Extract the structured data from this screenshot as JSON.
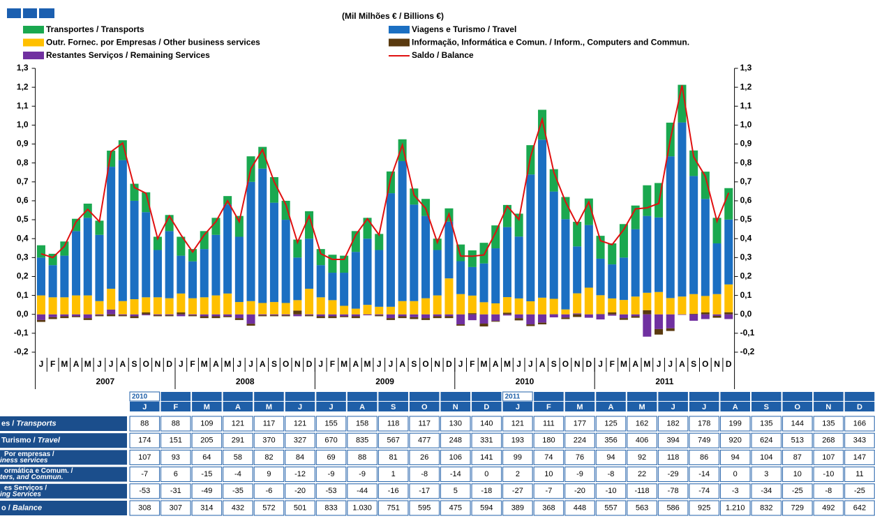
{
  "chart_data": {
    "type": "stacked-bar-line",
    "title": "(Mil Milhões € / Billions €)",
    "categories": [
      "J",
      "F",
      "M",
      "A",
      "M",
      "J",
      "J",
      "A",
      "S",
      "O",
      "N",
      "D",
      "J",
      "F",
      "M",
      "A",
      "M",
      "J",
      "J",
      "A",
      "S",
      "O",
      "N",
      "D",
      "J",
      "F",
      "M",
      "A",
      "M",
      "J",
      "J",
      "A",
      "S",
      "O",
      "N",
      "D",
      "J",
      "F",
      "M",
      "A",
      "M",
      "J",
      "J",
      "A",
      "S",
      "O",
      "N",
      "D",
      "J",
      "F",
      "M",
      "A",
      "M",
      "J",
      "J",
      "A",
      "S",
      "O",
      "N",
      "D"
    ],
    "year_groups": [
      "2007",
      "2008",
      "2009",
      "2010",
      "2011"
    ],
    "ylim": [
      -0.2,
      1.3
    ],
    "yticks": [
      {
        "value": -0.2,
        "label": "-0,2"
      },
      {
        "value": -0.1,
        "label": "-0,1"
      },
      {
        "value": 0,
        "label": "0,0"
      },
      {
        "value": 0.1,
        "label": "0,1"
      },
      {
        "value": 0.2,
        "label": "0,2"
      },
      {
        "value": 0.3,
        "label": "0,3"
      },
      {
        "value": 0.4,
        "label": "0,4"
      },
      {
        "value": 0.5,
        "label": "0,5"
      },
      {
        "value": 0.6,
        "label": "0,6"
      },
      {
        "value": 0.7,
        "label": "0,7"
      },
      {
        "value": 0.8,
        "label": "0,8"
      },
      {
        "value": 0.9,
        "label": "0,9"
      },
      {
        "value": 1,
        "label": "1,0"
      },
      {
        "value": 1.1,
        "label": "1,1"
      },
      {
        "value": 1.2,
        "label": "1,2"
      },
      {
        "value": 1.3,
        "label": "1,3"
      }
    ],
    "series": [
      {
        "name": "Transportes / Transports",
        "color": "#1aa84f",
        "values": [
          0.065,
          0.06,
          0.075,
          0.065,
          0.075,
          0.075,
          0.085,
          0.105,
          0.09,
          0.105,
          0.07,
          0.085,
          0.1,
          0.065,
          0.095,
          0.09,
          0.045,
          0.11,
          0.135,
          0.115,
          0.135,
          0.1,
          0.095,
          0.145,
          0.085,
          0.095,
          0.09,
          0.11,
          0.11,
          0.085,
          0.115,
          0.115,
          0.085,
          0.09,
          0.06,
          0.07,
          0.088,
          0.088,
          0.109,
          0.121,
          0.117,
          0.121,
          0.155,
          0.158,
          0.118,
          0.117,
          0.13,
          0.14,
          0.121,
          0.111,
          0.177,
          0.125,
          0.162,
          0.182,
          0.178,
          0.199,
          0.135,
          0.144,
          0.135,
          0.166
        ]
      },
      {
        "name": "Viagens e Turismo / Travel",
        "color": "#1b6fc2",
        "values": [
          0.2,
          0.17,
          0.22,
          0.34,
          0.41,
          0.35,
          0.645,
          0.745,
          0.52,
          0.45,
          0.25,
          0.355,
          0.2,
          0.195,
          0.255,
          0.32,
          0.47,
          0.345,
          0.63,
          0.71,
          0.525,
          0.44,
          0.225,
          0.265,
          0.17,
          0.145,
          0.175,
          0.3,
          0.35,
          0.3,
          0.6,
          0.74,
          0.51,
          0.435,
          0.24,
          0.3,
          0.174,
          0.151,
          0.205,
          0.291,
          0.37,
          0.327,
          0.67,
          0.835,
          0.567,
          0.477,
          0.248,
          0.331,
          0.193,
          0.18,
          0.224,
          0.356,
          0.406,
          0.394,
          0.749,
          0.92,
          0.624,
          0.513,
          0.268,
          0.343
        ]
      },
      {
        "name": "Outr. Fornec. por Empresas  / Other business services",
        "color": "#ffc000",
        "values": [
          0.1,
          0.09,
          0.09,
          0.1,
          0.1,
          0.07,
          0.11,
          0.07,
          0.08,
          0.08,
          0.09,
          0.085,
          0.1,
          0.085,
          0.09,
          0.1,
          0.11,
          0.065,
          0.07,
          0.06,
          0.065,
          0.06,
          0.055,
          0.135,
          0.09,
          0.075,
          0.045,
          0.03,
          0.05,
          0.04,
          0.04,
          0.07,
          0.07,
          0.085,
          0.1,
          0.19,
          0.107,
          0.093,
          0.064,
          0.058,
          0.082,
          0.084,
          0.069,
          0.088,
          0.081,
          0.026,
          0.106,
          0.141,
          0.099,
          0.074,
          0.076,
          0.094,
          0.092,
          0.118,
          0.086,
          0.094,
          0.104,
          0.087,
          0.107,
          0.147
        ]
      },
      {
        "name": "Informação, Informática e Comun. / Inform., Computers and Commun.",
        "color": "#5a3a0f",
        "values": [
          -0.01,
          -0.01,
          -0.01,
          -0.005,
          -0.01,
          -0.005,
          -0.01,
          -0.005,
          -0.01,
          0.01,
          -0.005,
          -0.005,
          0.01,
          -0.005,
          -0.01,
          -0.01,
          -0.005,
          -0.01,
          -0.01,
          -0.005,
          -0.005,
          -0.005,
          0.02,
          -0.005,
          -0.01,
          -0.01,
          -0.005,
          -0.01,
          0,
          -0.005,
          -0.01,
          -0.01,
          -0.01,
          -0.01,
          -0.01,
          -0.01,
          -0.007,
          0.006,
          -0.015,
          -0.004,
          0.009,
          -0.012,
          -0.009,
          -0.009,
          0.001,
          -0.008,
          -0.014,
          0,
          0.002,
          0.01,
          -0.009,
          -0.008,
          0.022,
          -0.029,
          -0.014,
          0,
          0.003,
          0.01,
          -0.01,
          0.011
        ]
      },
      {
        "name": "Restantes Serviços / Remaining Services",
        "color": "#7030a0",
        "values": [
          -0.03,
          -0.015,
          -0.01,
          -0.01,
          -0.02,
          -0.005,
          0.025,
          -0.005,
          -0.01,
          -0.005,
          -0.005,
          -0.005,
          -0.01,
          -0.005,
          -0.01,
          -0.01,
          -0.01,
          -0.02,
          -0.05,
          -0.005,
          -0.005,
          -0.005,
          -0.01,
          -0.005,
          -0.01,
          -0.01,
          -0.01,
          -0.01,
          -0.005,
          -0.005,
          -0.02,
          -0.01,
          -0.015,
          -0.02,
          -0.01,
          -0.01,
          -0.053,
          -0.031,
          -0.049,
          -0.035,
          -0.006,
          -0.02,
          -0.053,
          -0.044,
          -0.016,
          -0.017,
          0.005,
          -0.018,
          -0.027,
          -0.007,
          -0.02,
          -0.01,
          -0.118,
          -0.078,
          -0.074,
          -0.003,
          -0.034,
          -0.025,
          -0.008,
          -0.025
        ]
      },
      {
        "name": "Saldo / Balance",
        "color": "#e01010",
        "type": "line",
        "values": [
          0.32,
          0.3,
          0.36,
          0.49,
          0.555,
          0.49,
          0.86,
          0.905,
          0.67,
          0.64,
          0.4,
          0.52,
          0.42,
          0.33,
          0.42,
          0.49,
          0.6,
          0.49,
          0.77,
          0.87,
          0.7,
          0.58,
          0.38,
          0.52,
          0.32,
          0.29,
          0.29,
          0.42,
          0.505,
          0.42,
          0.72,
          0.895,
          0.63,
          0.56,
          0.38,
          0.53,
          0.308,
          0.307,
          0.314,
          0.432,
          0.572,
          0.501,
          0.833,
          1.03,
          0.751,
          0.595,
          0.475,
          0.594,
          0.389,
          0.368,
          0.448,
          0.557,
          0.563,
          0.586,
          0.925,
          1.21,
          0.832,
          0.729,
          0.492,
          0.642
        ]
      }
    ]
  },
  "table": {
    "years": [
      {
        "col": 0,
        "label": "2010"
      },
      {
        "col": 12,
        "label": "2011"
      }
    ],
    "months": [
      "J",
      "F",
      "M",
      "A",
      "M",
      "J",
      "J",
      "A",
      "S",
      "O",
      "N",
      "D",
      "J",
      "F",
      "M",
      "A",
      "M",
      "J",
      "J",
      "A",
      "S",
      "O",
      "N",
      "D"
    ],
    "rows": [
      {
        "label": [
          "es / ",
          "Transports"
        ],
        "values": [
          "88",
          "88",
          "109",
          "121",
          "117",
          "121",
          "155",
          "158",
          "118",
          "117",
          "130",
          "140",
          "121",
          "111",
          "177",
          "125",
          "162",
          "182",
          "178",
          "199",
          "135",
          "144",
          "135",
          "166"
        ]
      },
      {
        "label": [
          "Turismo / ",
          "Travel"
        ],
        "values": [
          "174",
          "151",
          "205",
          "291",
          "370",
          "327",
          "670",
          "835",
          "567",
          "477",
          "248",
          "331",
          "193",
          "180",
          "224",
          "356",
          "406",
          "394",
          "749",
          "920",
          "624",
          "513",
          "268",
          "343"
        ]
      },
      {
        "label": [
          "Por empresas /",
          "iness services"
        ],
        "values": [
          "107",
          "93",
          "64",
          "58",
          "82",
          "84",
          "69",
          "88",
          "81",
          "26",
          "106",
          "141",
          "99",
          "74",
          "76",
          "94",
          "92",
          "118",
          "86",
          "94",
          "104",
          "87",
          "107",
          "147"
        ]
      },
      {
        "label": [
          "ormática e Comum. /",
          "ters, and Commun."
        ],
        "values": [
          "-7",
          "6",
          "-15",
          "-4",
          "9",
          "-12",
          "-9",
          "-9",
          "1",
          "-8",
          "-14",
          "0",
          "2",
          "10",
          "-9",
          "-8",
          "22",
          "-29",
          "-14",
          "0",
          "3",
          "10",
          "-10",
          "11"
        ]
      },
      {
        "label": [
          "es Serviços /",
          "ing Services"
        ],
        "values": [
          "-53",
          "-31",
          "-49",
          "-35",
          "-6",
          "-20",
          "-53",
          "-44",
          "-16",
          "-17",
          "5",
          "-18",
          "-27",
          "-7",
          "-20",
          "-10",
          "-118",
          "-78",
          "-74",
          "-3",
          "-34",
          "-25",
          "-8",
          "-25"
        ]
      },
      {
        "label": [
          "o / ",
          "Balance"
        ],
        "values": [
          "308",
          "307",
          "314",
          "432",
          "572",
          "501",
          "833",
          "1.030",
          "751",
          "595",
          "475",
          "594",
          "389",
          "368",
          "448",
          "557",
          "563",
          "586",
          "925",
          "1.210",
          "832",
          "729",
          "492",
          "642"
        ]
      }
    ]
  }
}
